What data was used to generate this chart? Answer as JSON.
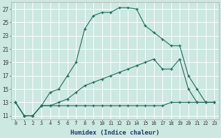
{
  "xlabel": "Humidex (Indice chaleur)",
  "bg_color": "#cce8e0",
  "grid_color": "#b0d8d0",
  "line_color": "#1a6b5a",
  "xlim": [
    -0.5,
    23.5
  ],
  "ylim": [
    10.5,
    28
  ],
  "yticks": [
    11,
    13,
    15,
    17,
    19,
    21,
    23,
    25,
    27
  ],
  "xticks": [
    0,
    1,
    2,
    3,
    4,
    5,
    6,
    7,
    8,
    9,
    10,
    11,
    12,
    13,
    14,
    15,
    16,
    17,
    18,
    19,
    20,
    21,
    22,
    23
  ],
  "line1_x": [
    0,
    1,
    2,
    3,
    4,
    5,
    6,
    7,
    8,
    9,
    10,
    11,
    12,
    13,
    14,
    15,
    16,
    17,
    18,
    19,
    20,
    21,
    22,
    23
  ],
  "line1_y": [
    13,
    11,
    11,
    12.5,
    14.5,
    15.0,
    17.0,
    19.0,
    24.0,
    26.0,
    26.5,
    26.5,
    27.2,
    27.2,
    27.0,
    24.5,
    23.5,
    22.5,
    21.5,
    21.5,
    17.0,
    15.0,
    13.0,
    13.0
  ],
  "line2_x": [
    0,
    1,
    2,
    3,
    4,
    5,
    6,
    7,
    8,
    9,
    10,
    11,
    12,
    13,
    14,
    15,
    16,
    17,
    18,
    19,
    20,
    21,
    22,
    23
  ],
  "line2_y": [
    13,
    11,
    11,
    12.5,
    12.5,
    12.5,
    12.5,
    12.5,
    12.5,
    12.5,
    12.5,
    12.5,
    12.5,
    12.5,
    12.5,
    12.5,
    12.5,
    12.5,
    13.0,
    13.0,
    13.0,
    13.0,
    13.0,
    13.0
  ],
  "line3_x": [
    0,
    1,
    2,
    3,
    4,
    5,
    6,
    7,
    8,
    9,
    10,
    11,
    12,
    13,
    14,
    15,
    16,
    17,
    18,
    19,
    20,
    21,
    22,
    23
  ],
  "line3_y": [
    13,
    11,
    11,
    12.5,
    12.5,
    13.0,
    13.5,
    14.5,
    15.5,
    16.0,
    16.5,
    17.0,
    17.5,
    18.0,
    18.5,
    19.0,
    19.5,
    18.0,
    18.0,
    19.5,
    15.0,
    13.0,
    13.0,
    13.0
  ]
}
